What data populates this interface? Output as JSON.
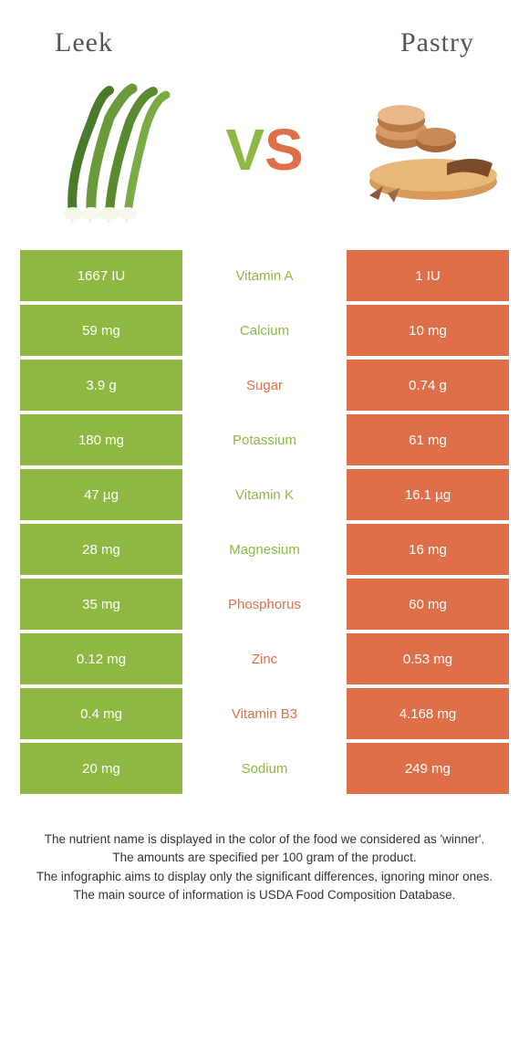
{
  "colors": {
    "leek": "#8fb843",
    "pastry": "#df6f49",
    "title": "#555555",
    "text": "#333333",
    "white": "#ffffff"
  },
  "header": {
    "left_title": "Leek",
    "right_title": "Pastry",
    "vs_v": "V",
    "vs_s": "S"
  },
  "nutrients": [
    {
      "name": "Vitamin A",
      "left": "1667 IU",
      "right": "1 IU",
      "winner": "leek"
    },
    {
      "name": "Calcium",
      "left": "59 mg",
      "right": "10 mg",
      "winner": "leek"
    },
    {
      "name": "Sugar",
      "left": "3.9 g",
      "right": "0.74 g",
      "winner": "pastry"
    },
    {
      "name": "Potassium",
      "left": "180 mg",
      "right": "61 mg",
      "winner": "leek"
    },
    {
      "name": "Vitamin K",
      "left": "47 µg",
      "right": "16.1 µg",
      "winner": "leek"
    },
    {
      "name": "Magnesium",
      "left": "28 mg",
      "right": "16 mg",
      "winner": "leek"
    },
    {
      "name": "Phosphorus",
      "left": "35 mg",
      "right": "60 mg",
      "winner": "pastry"
    },
    {
      "name": "Zinc",
      "left": "0.12 mg",
      "right": "0.53 mg",
      "winner": "pastry"
    },
    {
      "name": "Vitamin B3",
      "left": "0.4 mg",
      "right": "4.168 mg",
      "winner": "pastry"
    },
    {
      "name": "Sodium",
      "left": "20 mg",
      "right": "249 mg",
      "winner": "leek"
    }
  ],
  "footer": {
    "line1": "The nutrient name is displayed in the color of the food we considered as 'winner'.",
    "line2": "The amounts are specified per 100 gram of the product.",
    "line3": "The infographic aims to display only the significant differences, ignoring minor ones.",
    "line4": "The main source of information is USDA Food Composition Database."
  }
}
